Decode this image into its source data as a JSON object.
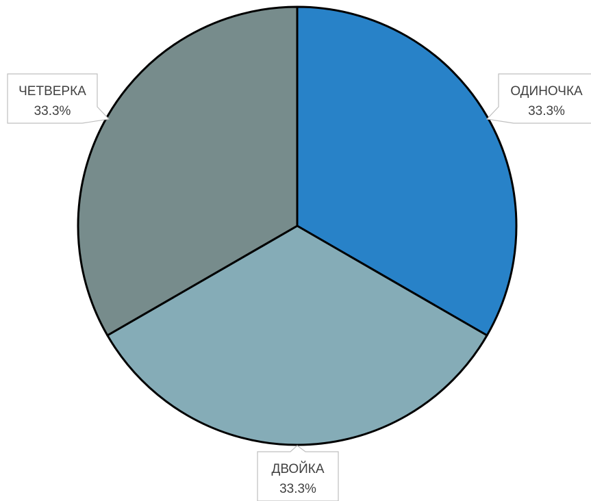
{
  "chart_data": {
    "type": "pie",
    "title": "",
    "legend": "none",
    "slices": [
      {
        "label": "ОДИНОЧКА",
        "value": 33.3,
        "percent_label": "33.3%",
        "color": "#2882c8"
      },
      {
        "label": "ДВОЙКА",
        "value": 33.3,
        "percent_label": "33.3%",
        "color": "#85acb7"
      },
      {
        "label": "ЧЕТВЕРКА",
        "value": 33.3,
        "percent_label": "33.3%",
        "color": "#778c8c"
      }
    ]
  }
}
